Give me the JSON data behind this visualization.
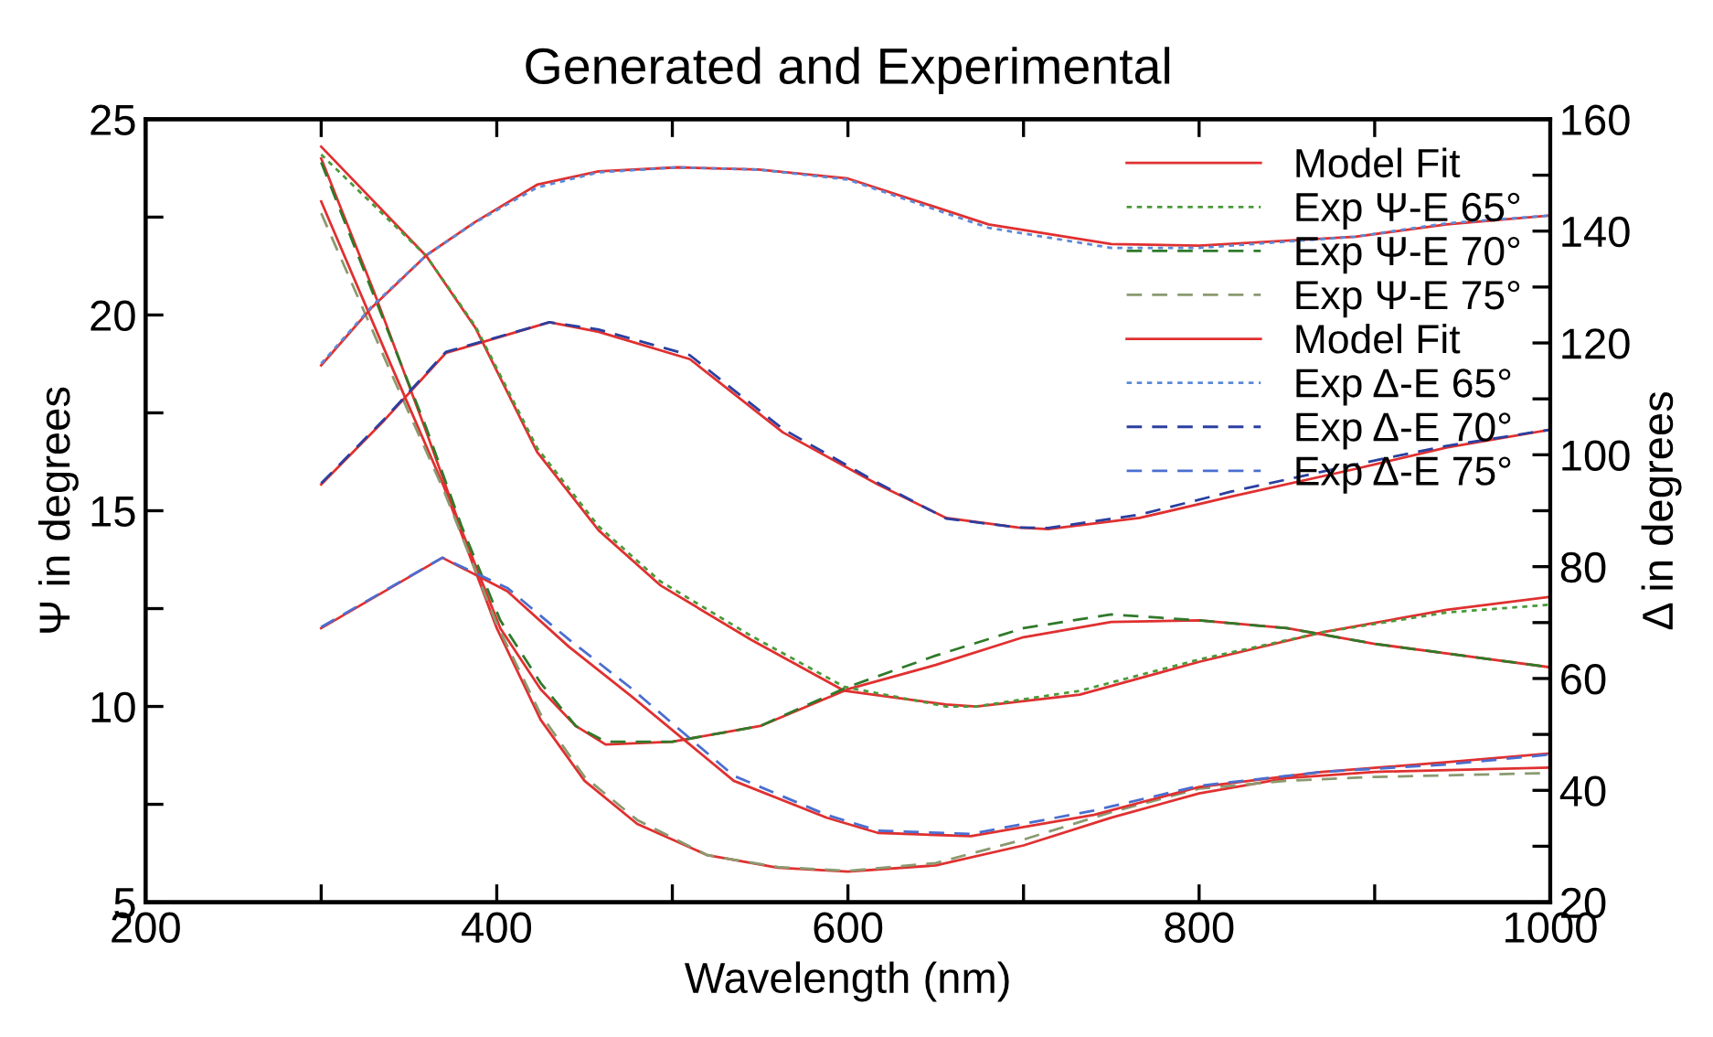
{
  "chart_data": {
    "type": "line",
    "title": "Generated and Experimental",
    "xlabel": "Wavelength (nm)",
    "ylabel": "Ψ in degrees",
    "y2label": "Δ in degrees",
    "xlim": [
      200,
      1000
    ],
    "xticks": [
      200,
      {
        "value": 300,
        "label": null
      },
      400,
      {
        "value": 500,
        "label": null
      },
      600,
      {
        "value": 700,
        "label": null
      },
      800,
      {
        "value": 900,
        "label": null
      },
      1000
    ],
    "ylim": [
      5,
      25
    ],
    "yticks": [
      5,
      {
        "value": 7.5,
        "label": null
      },
      10,
      {
        "value": 12.5,
        "label": null
      },
      15,
      {
        "value": 17.5,
        "label": null
      },
      20,
      {
        "value": 22.5,
        "label": null
      },
      25
    ],
    "y2lim": [
      20,
      160
    ],
    "y2ticks": [
      20,
      {
        "value": 30,
        "label": null
      },
      40,
      {
        "value": 50,
        "label": null
      },
      60,
      {
        "value": 70,
        "label": null
      },
      80,
      {
        "value": 90,
        "label": null
      },
      100,
      {
        "value": 110,
        "label": null
      },
      120,
      {
        "value": 130,
        "label": null
      },
      140,
      {
        "value": 150,
        "label": null
      },
      160
    ],
    "grid": false,
    "legend": "top right",
    "marker": "none",
    "series": [
      {
        "name": "Model Fit",
        "color": "#e03030",
        "line_style": "solid",
        "x": [
          300,
          360,
          388,
          423,
          458,
          493,
          545,
          598,
          656,
          673,
          732,
          800,
          871,
          941,
          1000
        ],
        "values": [
          24.3,
          21.5,
          19.66,
          16.5,
          14.5,
          13.1,
          11.7,
          10.4,
          10.05,
          10.0,
          10.3,
          11.14,
          11.9,
          12.47,
          12.8
        ]
      },
      {
        "color": "#e03030",
        "line_style": "solid",
        "x": [
          300,
          330,
          360,
          380,
          402,
          425,
          445,
          462,
          500,
          550,
          600,
          650,
          700,
          750,
          800,
          850,
          900,
          950,
          1000
        ],
        "values": [
          24.0,
          20.6,
          17.0,
          14.5,
          12.0,
          10.44,
          9.5,
          9.03,
          9.1,
          9.5,
          10.44,
          11.06,
          11.77,
          12.16,
          12.2,
          12.0,
          11.6,
          11.3,
          11.0
        ]
      },
      {
        "color": "#e03030",
        "line_style": "solid",
        "x": [
          300,
          340,
          370,
          400,
          425,
          450,
          480,
          520,
          560,
          600,
          650,
          700,
          750,
          800,
          850,
          900,
          1000
        ],
        "values": [
          22.9,
          18.7,
          15.6,
          12.0,
          9.66,
          8.1,
          7.0,
          6.2,
          5.88,
          5.78,
          5.94,
          6.45,
          7.16,
          7.78,
          8.17,
          8.33,
          8.44
        ]
      },
      {
        "name": "Exp Ψ-E 65°",
        "color": "#4a9a3a",
        "line_style": "dotted",
        "x": [
          300,
          360,
          388,
          423,
          458,
          493,
          545,
          598,
          656,
          673,
          732,
          800,
          871,
          941,
          1000
        ],
        "values": [
          24.1,
          21.5,
          19.7,
          16.6,
          14.6,
          13.2,
          11.8,
          10.5,
          10.0,
          10.0,
          10.4,
          11.2,
          11.9,
          12.4,
          12.6
        ]
      },
      {
        "name": "Exp Ψ-E 70°",
        "color": "#2f7a2a",
        "line_style": "dashed",
        "x": [
          300,
          330,
          360,
          380,
          402,
          425,
          445,
          462,
          500,
          550,
          600,
          650,
          700,
          750,
          800,
          850,
          900,
          950,
          1000
        ],
        "values": [
          23.9,
          20.5,
          17.1,
          14.6,
          12.2,
          10.6,
          9.5,
          9.1,
          9.1,
          9.5,
          10.5,
          11.3,
          12.0,
          12.35,
          12.2,
          12.0,
          11.6,
          11.3,
          11.0
        ]
      },
      {
        "name": "Exp Ψ-E 75°",
        "color": "#8a9a70",
        "line_style": "dashed",
        "x": [
          300,
          340,
          370,
          400,
          425,
          450,
          480,
          520,
          560,
          600,
          650,
          700,
          750,
          800,
          850,
          900,
          1000
        ],
        "values": [
          22.6,
          18.5,
          15.5,
          12.1,
          9.8,
          8.2,
          7.1,
          6.2,
          5.9,
          5.8,
          6.0,
          6.6,
          7.3,
          7.9,
          8.1,
          8.2,
          8.3
        ]
      },
      {
        "name": "Model Fit",
        "color": "#e03030",
        "line_style": "solid",
        "axis": "y2",
        "x": [
          300,
          329,
          360,
          388,
          423,
          458,
          503,
          549,
          600,
          680,
          750,
          800,
          889,
          941,
          1000
        ],
        "values": [
          116.0,
          126.4,
          135.7,
          141.7,
          148.3,
          150.7,
          151.4,
          151.0,
          149.4,
          141.2,
          137.7,
          137.4,
          139.0,
          141.2,
          142.8
        ]
      },
      {
        "color": "#e03030",
        "line_style": "solid",
        "axis": "y2",
        "x": [
          300,
          336,
          371,
          430,
          458,
          510,
          563,
          617,
          656,
          697,
          714,
          766,
          818,
          888,
          941,
          1000
        ],
        "values": [
          94.7,
          106.2,
          118.2,
          123.7,
          122.0,
          117.1,
          104.0,
          94.7,
          88.7,
          87.0,
          86.7,
          88.7,
          92.5,
          97.4,
          101.3,
          104.5
        ]
      },
      {
        "color": "#e03030",
        "line_style": "solid",
        "axis": "y2",
        "x": [
          300,
          369,
          406,
          441,
          476,
          535,
          588,
          617,
          670,
          740,
          800,
          870,
          940,
          1000
        ],
        "values": [
          69.0,
          81.6,
          75.6,
          65.7,
          57.0,
          41.7,
          35.1,
          32.4,
          31.8,
          35.6,
          40.6,
          43.3,
          45.0,
          46.6
        ]
      },
      {
        "name": "Exp Δ-E 65°",
        "color": "#5a8ad8",
        "line_style": "dotted",
        "axis": "y2",
        "x": [
          300,
          329,
          360,
          388,
          423,
          458,
          503,
          549,
          600,
          680,
          750,
          800,
          889,
          941,
          1000
        ],
        "values": [
          116.3,
          126.6,
          135.7,
          141.6,
          147.8,
          150.5,
          151.4,
          151.0,
          149.2,
          140.6,
          137.0,
          137.0,
          139.0,
          141.4,
          142.8
        ]
      },
      {
        "name": "Exp Δ-E 70°",
        "color": "#2a3fa0",
        "line_style": "dashed",
        "axis": "y2",
        "x": [
          300,
          336,
          371,
          430,
          458,
          510,
          563,
          617,
          656,
          697,
          714,
          766,
          818,
          888,
          941,
          1000
        ],
        "values": [
          94.9,
          106.4,
          118.4,
          123.7,
          122.4,
          117.8,
          104.6,
          95.0,
          88.6,
          87.0,
          86.9,
          89.3,
          93.4,
          98.2,
          101.6,
          104.5
        ]
      },
      {
        "name": "Exp Δ-E 75°",
        "color": "#4a6ed0",
        "line_style": "dashed",
        "axis": "y2",
        "x": [
          300,
          369,
          406,
          441,
          476,
          535,
          588,
          617,
          670,
          740,
          800,
          870,
          940,
          1000
        ],
        "values": [
          69.2,
          81.6,
          76.2,
          67.0,
          58.4,
          42.6,
          35.6,
          32.8,
          32.2,
          36.4,
          40.8,
          43.3,
          44.6,
          46.4
        ]
      }
    ]
  }
}
